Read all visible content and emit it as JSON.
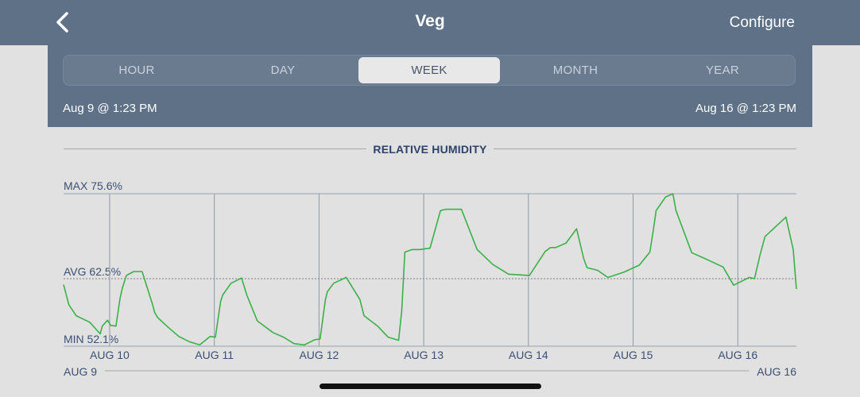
{
  "nav": {
    "title": "Veg",
    "configure_label": "Configure",
    "back_icon": "chevron-left-icon"
  },
  "tabs": [
    {
      "label": "HOUR",
      "active": false
    },
    {
      "label": "DAY",
      "active": false
    },
    {
      "label": "WEEK",
      "active": true
    },
    {
      "label": "MONTH",
      "active": false
    },
    {
      "label": "YEAR",
      "active": false
    }
  ],
  "range": {
    "start": "Aug 9 @ 1:23 PM",
    "end": "Aug 16 @ 1:23 PM"
  },
  "colors": {
    "header": "#5e7187",
    "line": "#3cb048",
    "text": "#2e4268"
  },
  "chart_data": {
    "type": "line",
    "title": "RELATIVE HUMIDITY",
    "max_label": "MAX 75.6%",
    "avg_label": "AVG 62.5%",
    "min_label": "MIN 52.1%",
    "ylim": [
      52.1,
      75.6
    ],
    "avg": 62.5,
    "x_unit": "days since Aug 9 @ 1:23 PM",
    "xlim": [
      0,
      7
    ],
    "tick_labels": [
      "AUG 10",
      "AUG 11",
      "AUG 12",
      "AUG 13",
      "AUG 14",
      "AUG 15",
      "AUG 16"
    ],
    "tick_positions": [
      0.44,
      1.44,
      2.44,
      3.44,
      4.44,
      5.44,
      6.44
    ],
    "range_start_label": "AUG 9",
    "range_end_label": "AUG 16",
    "series": [
      {
        "name": "Relative Humidity",
        "x": [
          0,
          0.05,
          0.12,
          0.25,
          0.35,
          0.37,
          0.42,
          0.45,
          0.5,
          0.54,
          0.56,
          0.6,
          0.67,
          0.75,
          0.85,
          0.87,
          0.9,
          1.0,
          1.1,
          1.2,
          1.3,
          1.4,
          1.45,
          1.5,
          1.52,
          1.6,
          1.7,
          1.75,
          1.85,
          2.0,
          2.1,
          2.2,
          2.3,
          2.4,
          2.45,
          2.5,
          2.52,
          2.58,
          2.7,
          2.83,
          2.87,
          3.0,
          3.1,
          3.2,
          3.23,
          3.26,
          3.33,
          3.4,
          3.5,
          3.6,
          3.65,
          3.8,
          3.95,
          4.1,
          4.25,
          4.45,
          4.6,
          4.65,
          4.7,
          4.8,
          4.9,
          4.97,
          5.0,
          5.1,
          5.2,
          5.35,
          5.5,
          5.6,
          5.63,
          5.66,
          5.75,
          5.82,
          5.85,
          6.0,
          6.1,
          6.3,
          6.4,
          6.55,
          6.6,
          6.65,
          6.7,
          6.9,
          6.97,
          7.0
        ],
        "y": [
          61.6,
          58.5,
          56.8,
          55.8,
          54.0,
          55.2,
          56.1,
          55.3,
          55.2,
          59.5,
          61.0,
          63.0,
          63.6,
          63.6,
          58.5,
          57.3,
          56.5,
          55.0,
          53.6,
          52.8,
          52.3,
          53.6,
          53.5,
          59.0,
          60.0,
          61.8,
          62.6,
          60.0,
          56.0,
          54.2,
          53.5,
          52.5,
          52.3,
          53.1,
          53.2,
          59.2,
          60.5,
          61.8,
          62.7,
          59.3,
          56.8,
          55.2,
          53.5,
          53.0,
          57.5,
          66.6,
          67.0,
          67.0,
          67.2,
          73.0,
          73.2,
          73.2,
          67.0,
          64.7,
          63.2,
          63.0,
          66.7,
          67.3,
          67.3,
          68.0,
          70.2,
          65.5,
          64.2,
          63.8,
          62.7,
          63.5,
          64.6,
          66.6,
          69.7,
          73.0,
          75.1,
          75.6,
          73.0,
          66.5,
          65.8,
          64.3,
          61.5,
          62.7,
          62.5,
          66.0,
          69.0,
          72.0,
          67.0,
          60.9
        ]
      }
    ]
  }
}
